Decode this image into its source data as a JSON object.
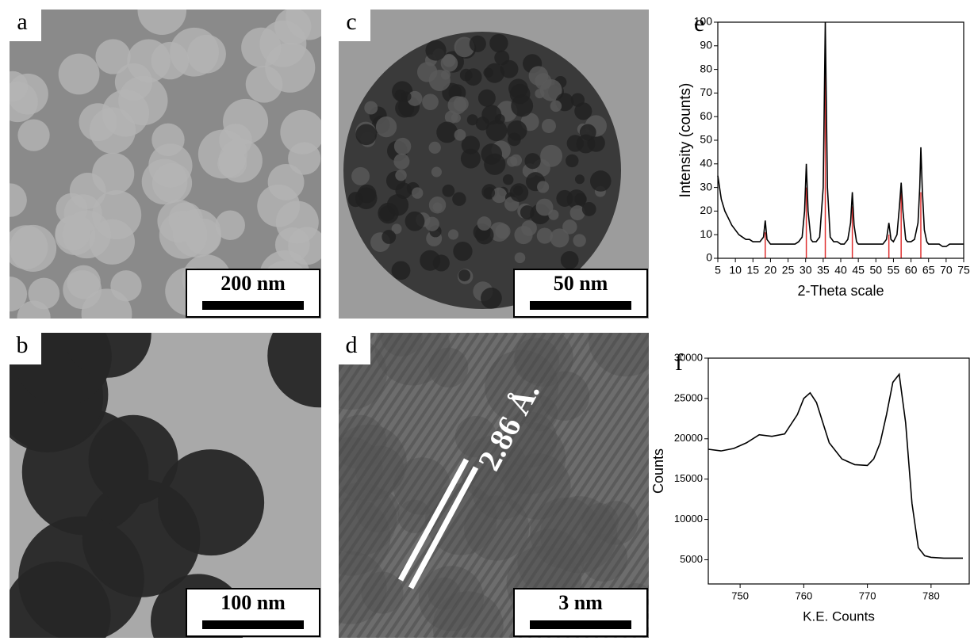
{
  "panels": [
    {
      "label": "a",
      "scale_bar": "200 nm"
    },
    {
      "label": "b",
      "scale_bar": "100 nm"
    },
    {
      "label": "c",
      "scale_bar": "50 nm"
    },
    {
      "label": "d",
      "scale_bar": "3 nm",
      "annotation": "2.86 Å."
    }
  ],
  "chart_data": [
    {
      "type": "line",
      "panel_label": "e",
      "x_label": "2-Theta scale",
      "y_label": "Intensity (counts)",
      "xlim": [
        5,
        75
      ],
      "ylim": [
        0,
        100
      ],
      "xticks": [
        5,
        10,
        15,
        20,
        25,
        30,
        35,
        40,
        45,
        50,
        55,
        60,
        65,
        70,
        75
      ],
      "yticks": [
        0,
        10,
        20,
        30,
        40,
        50,
        60,
        70,
        80,
        90,
        100
      ],
      "x": [
        5,
        6,
        7,
        8,
        9,
        10,
        11,
        12,
        13,
        14,
        15,
        16,
        17,
        18,
        18.5,
        19,
        20,
        21,
        22,
        23,
        24,
        25,
        26,
        27,
        28,
        29,
        29.7,
        30.2,
        30.7,
        31.5,
        32,
        33,
        34,
        35,
        35.6,
        36.2,
        37,
        38,
        39,
        40,
        41,
        42,
        42.8,
        43.3,
        43.8,
        44.5,
        45,
        46,
        47,
        48,
        49,
        50,
        51,
        52,
        53,
        53.7,
        54.3,
        55,
        56,
        56.7,
        57.2,
        57.7,
        58.5,
        59,
        60,
        61,
        62,
        62.5,
        62.8,
        63.2,
        63.8,
        64.5,
        65,
        66,
        67,
        68,
        69,
        70,
        71,
        72,
        73,
        74,
        75
      ],
      "series": [
        {
          "color": "#000000",
          "values": [
            35,
            25,
            20,
            17,
            14,
            12,
            10,
            9,
            8,
            8,
            7,
            7,
            7,
            9,
            16,
            8,
            6,
            6,
            6,
            6,
            6,
            6,
            6,
            6,
            7,
            9,
            20,
            40,
            20,
            8,
            7,
            7,
            9,
            30,
            100,
            30,
            9,
            7,
            7,
            6,
            6,
            8,
            15,
            28,
            14,
            7,
            6,
            6,
            6,
            6,
            6,
            6,
            6,
            6,
            8,
            15,
            8,
            7,
            10,
            22,
            32,
            20,
            8,
            7,
            7,
            8,
            15,
            30,
            47,
            30,
            12,
            7,
            6,
            6,
            6,
            6,
            5,
            5,
            6,
            6,
            6,
            6,
            6
          ]
        }
      ],
      "reference_lines": {
        "color": "#e03030",
        "x": [
          18.5,
          30.2,
          35.6,
          43.3,
          53.7,
          57.2,
          62.8
        ],
        "values": [
          11,
          30,
          80,
          22,
          10,
          28,
          28
        ]
      }
    },
    {
      "type": "line",
      "panel_label": "f",
      "x_label": "K.E. Counts",
      "y_label": "Counts",
      "xlim": [
        745,
        786
      ],
      "ylim": [
        2000,
        30000
      ],
      "xticks": [
        750,
        760,
        770,
        780
      ],
      "yticks": [
        5000,
        10000,
        15000,
        20000,
        25000,
        30000
      ],
      "x": [
        745,
        747,
        749,
        751,
        753,
        755,
        757,
        759,
        760,
        761,
        762,
        763,
        764,
        766,
        768,
        770,
        771,
        772,
        773,
        774,
        775,
        776,
        777,
        778,
        779,
        780,
        782,
        784,
        785
      ],
      "series": [
        {
          "color": "#000000",
          "values": [
            18700,
            18500,
            18800,
            19500,
            20500,
            20300,
            20600,
            23000,
            25000,
            25700,
            24500,
            22000,
            19500,
            17500,
            16800,
            16700,
            17500,
            19500,
            23000,
            27000,
            28000,
            22000,
            12000,
            6500,
            5500,
            5300,
            5200,
            5200,
            5200
          ]
        }
      ]
    }
  ]
}
